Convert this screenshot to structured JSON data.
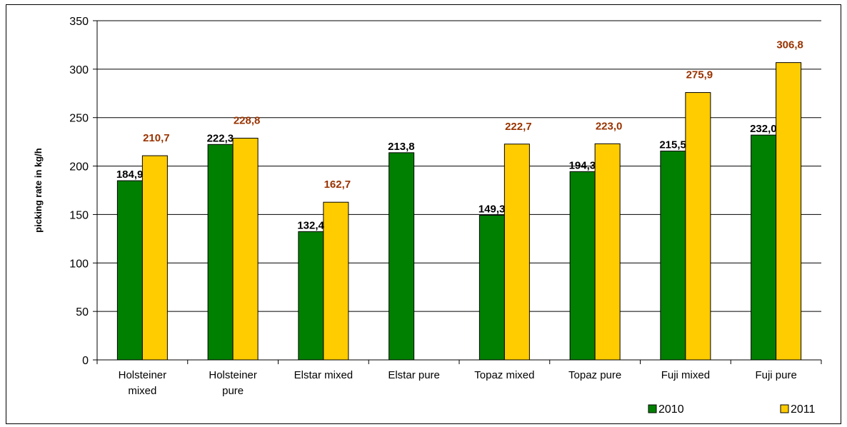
{
  "chart_data": {
    "type": "bar",
    "title": "",
    "xlabel": "",
    "ylabel": "picking rate in kg/h",
    "ylim": [
      0,
      350
    ],
    "yticks": [
      0,
      50,
      100,
      150,
      200,
      250,
      300,
      350
    ],
    "grid": true,
    "legend_position": "bottom-right",
    "categories": [
      [
        "Holsteiner",
        "mixed"
      ],
      [
        "Holsteiner",
        "pure"
      ],
      [
        "Elstar mixed"
      ],
      [
        "Elstar pure"
      ],
      [
        "Topaz mixed"
      ],
      [
        "Topaz pure"
      ],
      [
        "Fuji mixed"
      ],
      [
        "Fuji pure"
      ]
    ],
    "series": [
      {
        "name": "2010",
        "color": "#008000",
        "label_color": "#000000",
        "values": [
          184.9,
          222.3,
          132.4,
          213.8,
          149.3,
          194.3,
          215.5,
          232.0
        ],
        "labels": [
          "184,9",
          "222,3",
          "132,4",
          "213,8",
          "149,3",
          "194,3",
          "215,5",
          "232,0"
        ]
      },
      {
        "name": "2011",
        "color": "#FFCC00",
        "label_color": "#993300",
        "values": [
          210.7,
          228.8,
          162.7,
          null,
          222.7,
          223.0,
          275.9,
          306.8
        ],
        "labels": [
          "210,7",
          "228,8",
          "162,7",
          "",
          "222,7",
          "223,0",
          "275,9",
          "306,8"
        ]
      }
    ]
  }
}
